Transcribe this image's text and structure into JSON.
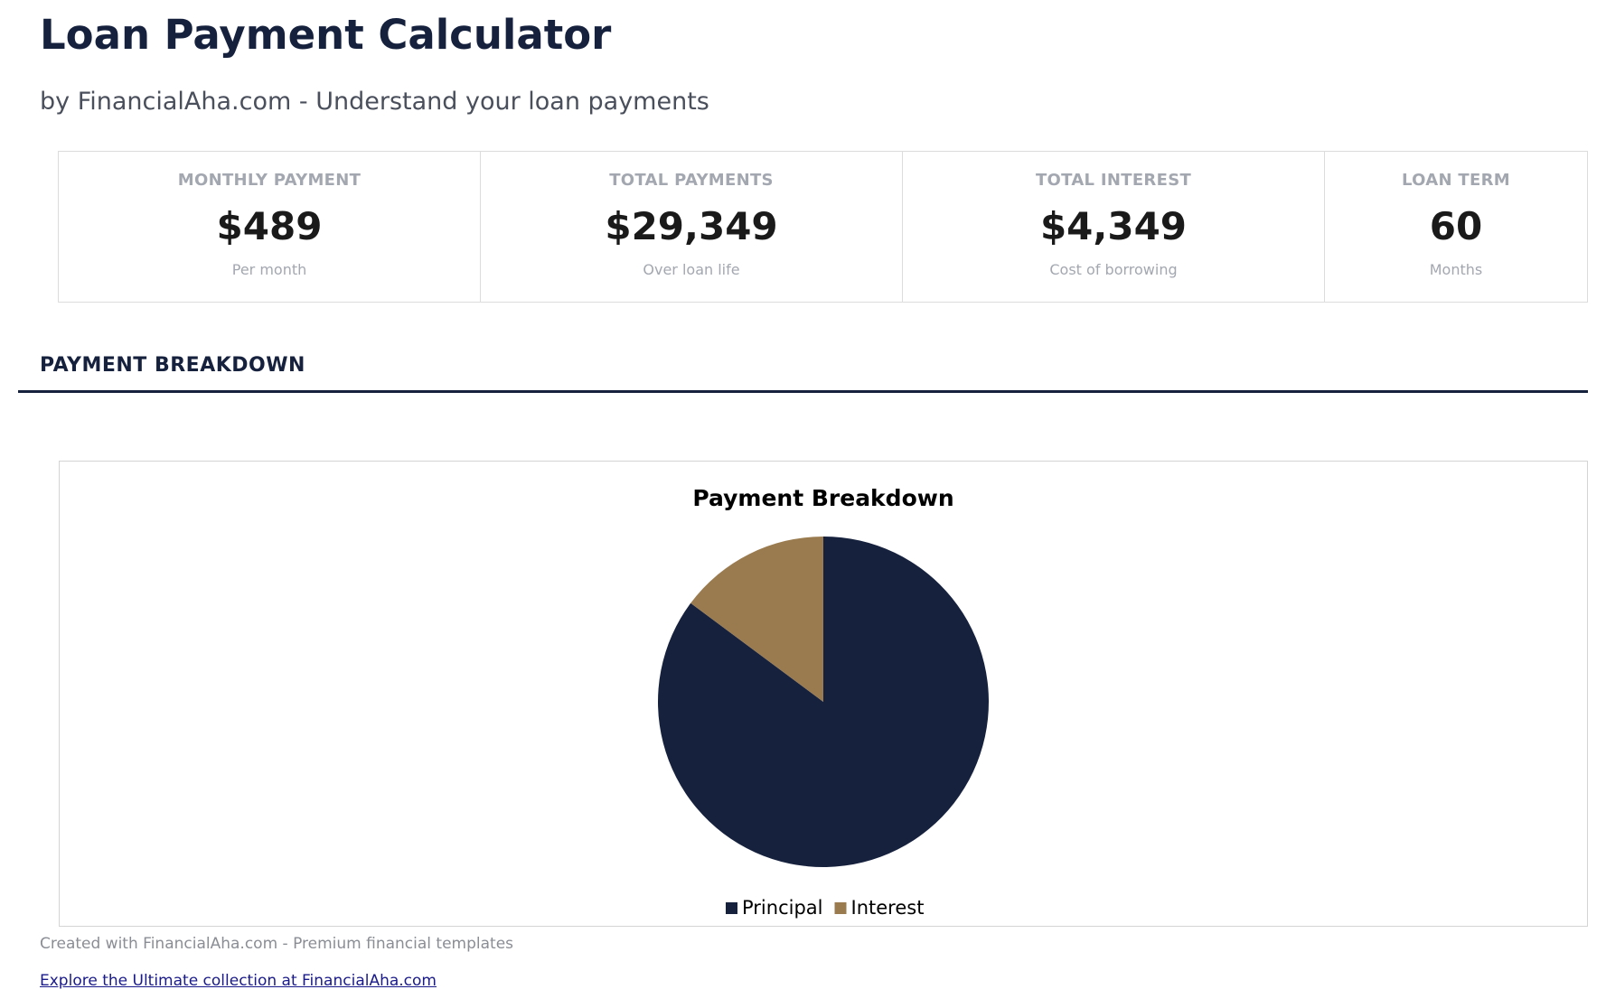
{
  "header": {
    "title": "Loan Payment Calculator",
    "subtitle": "by FinancialAha.com - Understand your loan payments"
  },
  "cards": [
    {
      "label": "MONTHLY PAYMENT",
      "value": "$489",
      "sub": "Per month"
    },
    {
      "label": "TOTAL PAYMENTS",
      "value": "$29,349",
      "sub": "Over loan life"
    },
    {
      "label": "TOTAL INTEREST",
      "value": "$4,349",
      "sub": "Cost of borrowing"
    },
    {
      "label": "LOAN TERM",
      "value": "60",
      "sub": "Months"
    }
  ],
  "section": {
    "title": "PAYMENT BREAKDOWN"
  },
  "chart_data": {
    "type": "pie",
    "title": "Payment Breakdown",
    "categories": [
      "Principal",
      "Interest"
    ],
    "values": [
      25000,
      4349
    ],
    "colors": [
      "#16213e",
      "#9a7b4f"
    ],
    "legend": "bottom"
  },
  "footer": {
    "text": "Created with FinancialAha.com - Premium financial templates",
    "link": "Explore the Ultimate collection at FinancialAha.com"
  }
}
